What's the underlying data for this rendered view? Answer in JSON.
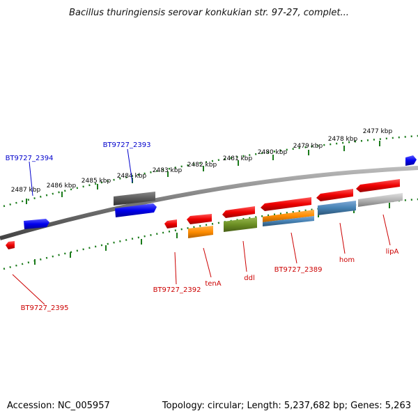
{
  "title": "Bacillus thuringiensis serovar konkukian str. 97-27, complet...",
  "footer": {
    "accession": "Accession: NC_005957",
    "summary": "Topology: circular; Length: 5,237,682 bp; Genes: 5,263"
  },
  "scale_ticks": [
    "2487 kbp",
    "2486 kbp",
    "2485 kbp",
    "2484 kbp",
    "2483 kbp",
    "2482 kbp",
    "2481 kbp",
    "2480 kbp",
    "2479 kbp",
    "2478 kbp",
    "2477 kbp"
  ],
  "gene_labels": [
    "BT9727_2394",
    "BT9727_2393",
    "BT9727_2395",
    "BT9727_2392",
    "tenA",
    "ddl",
    "BT9727_2389",
    "hom",
    "lipA"
  ],
  "colors": {
    "backbone": "#777777",
    "ruler": "#1a7a1a",
    "forward_strand_gene": "#0000ee",
    "forward_strand_label": "#0000cc",
    "reverse_strand_gene": "#ee0000",
    "reverse_strand_label": "#cc0000",
    "orange_feature": "#ff8c00",
    "green_feature": "#6b8e23",
    "steelblue_feature": "#4682b4",
    "gray_feature": "#5a5a5a",
    "silver_feature": "#b4b4b4"
  }
}
